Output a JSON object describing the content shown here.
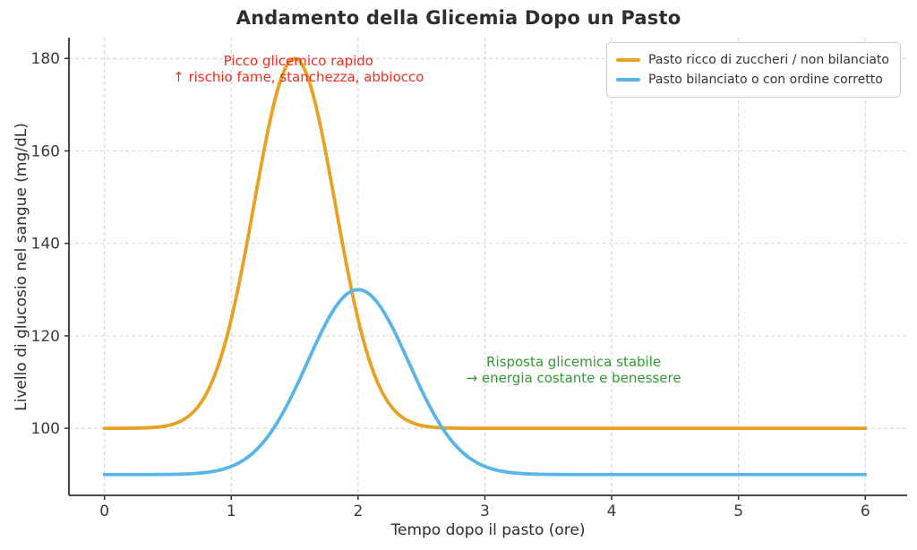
{
  "chart_data": {
    "type": "line",
    "title": "Andamento della Glicemia Dopo un Pasto",
    "xlabel": "Tempo dopo il pasto (ore)",
    "ylabel": "Livello di glucosio nel sangue (mg/dL)",
    "xlim": [
      -0.28,
      6.33
    ],
    "ylim": [
      85.5,
      184.5
    ],
    "x_ticks": [
      0,
      1,
      2,
      3,
      4,
      5,
      6
    ],
    "y_ticks": [
      100,
      120,
      140,
      160,
      180
    ],
    "grid": "dashed",
    "legend_position": "upper right",
    "colors": {
      "spine": "#333333",
      "grid": "#d9d9d9",
      "tick_label": "#3a3a3a"
    },
    "series": [
      {
        "name": "Pasto ricco di zuccheri / non bilanciato",
        "color": "#E8A120",
        "baseline_mgdl": 100,
        "peak_mgdl": 180,
        "peak_time_h": 1.5,
        "sigma_h": 0.32,
        "points": {
          "x": [
            0,
            0.25,
            0.5,
            0.75,
            1,
            1.25,
            1.5,
            1.75,
            2,
            2.25,
            2.5,
            2.75,
            3,
            3.25,
            3.5,
            3.75,
            4,
            4.25,
            4.5,
            4.75,
            5,
            5.25,
            5.5,
            5.75,
            6
          ],
          "y": [
            100,
            100,
            100.6,
            105.1,
            123.6,
            159,
            180,
            159,
            123.6,
            105.1,
            100.6,
            100,
            100,
            100,
            100,
            100,
            100,
            100,
            100,
            100,
            100,
            100,
            100,
            100,
            100
          ]
        }
      },
      {
        "name": "Pasto bilanciato o con ordine corretto",
        "color": "#58B5E9",
        "baseline_mgdl": 90,
        "peak_mgdl": 130,
        "peak_time_h": 2.0,
        "sigma_h": 0.4,
        "points": {
          "x": [
            0,
            0.25,
            0.5,
            0.75,
            1,
            1.25,
            1.5,
            1.75,
            2,
            2.25,
            2.5,
            2.75,
            3,
            3.25,
            3.5,
            3.75,
            4,
            4.25,
            4.5,
            4.75,
            5,
            5.25,
            5.5,
            5.75,
            6
          ],
          "y": [
            90,
            90,
            90,
            90.3,
            91.8,
            96.9,
            108.3,
            122.9,
            130,
            122.9,
            108.3,
            96.9,
            91.8,
            90.3,
            90,
            90,
            90,
            90,
            90,
            90,
            90,
            90,
            90,
            90,
            90
          ]
        }
      }
    ],
    "annotations": [
      {
        "lines": [
          "Picco glicemico rapido",
          "↑ rischio fame, stanchezza, abbiocco"
        ],
        "color": "#ee2e20",
        "x_h": 1.53,
        "y_mgdl": 181.2,
        "align": "center"
      },
      {
        "lines": [
          "Risposta glicemica stabile",
          "→ energia costante e benessere"
        ],
        "color": "#2e9b2e",
        "x_h": 3.7,
        "y_mgdl": 116.2,
        "align": "center"
      }
    ]
  }
}
